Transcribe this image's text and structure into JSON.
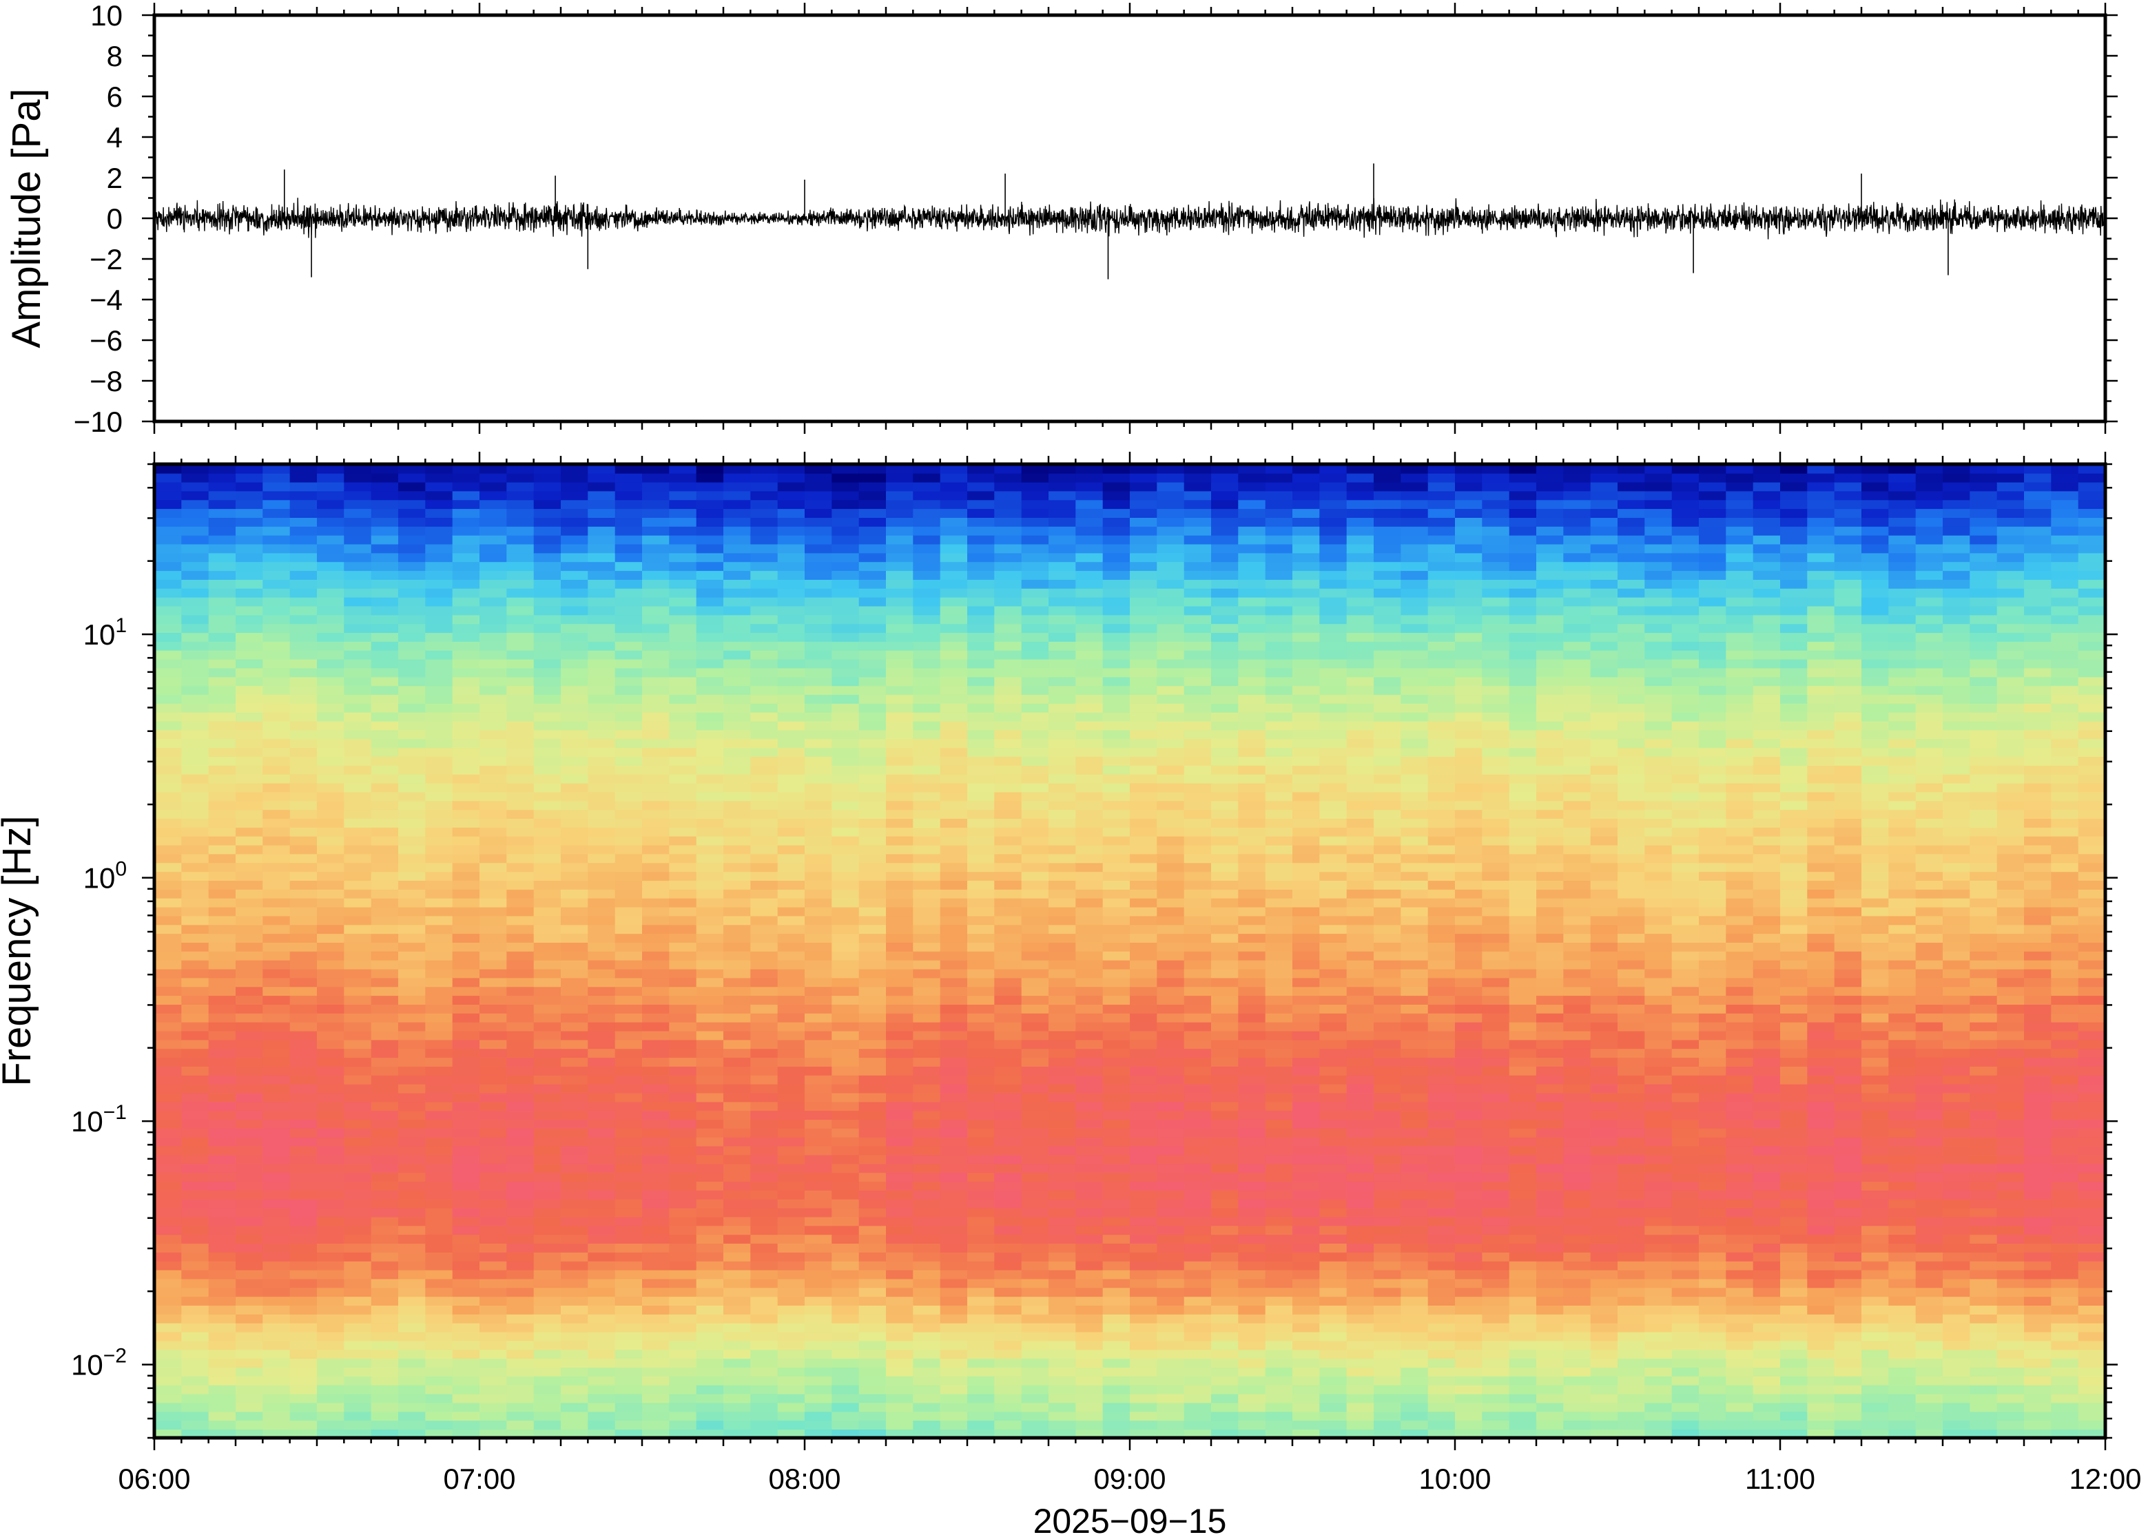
{
  "chart_data": [
    {
      "type": "line",
      "panel": "waveform",
      "ylabel": "Amplitude [Pa]",
      "ylim": [
        -10,
        10
      ],
      "yticks": [
        10,
        8,
        6,
        4,
        2,
        0,
        -2,
        -4,
        -6,
        -8,
        -10
      ],
      "ytick_labels": [
        "10",
        "8",
        "6",
        "4",
        "2",
        "0",
        "−2",
        "−4",
        "−6",
        "−8",
        "−10"
      ],
      "xlim": [
        "06:00",
        "12:00"
      ],
      "grid": false,
      "line_color": "#000000",
      "envelope": {
        "x": [
          "06:00",
          "06:15",
          "06:30",
          "06:45",
          "07:00",
          "07:15",
          "07:30",
          "07:45",
          "08:00",
          "08:15",
          "08:30",
          "08:45",
          "09:00",
          "09:15",
          "09:30",
          "09:45",
          "10:00",
          "10:15",
          "10:30",
          "10:45",
          "11:00",
          "11:15",
          "11:30",
          "11:45",
          "12:00"
        ],
        "typical_amplitude": [
          0.9,
          1.0,
          1.0,
          0.8,
          1.0,
          1.1,
          0.7,
          0.4,
          0.5,
          0.8,
          0.9,
          1.0,
          1.1,
          1.0,
          1.0,
          1.1,
          1.0,
          1.0,
          1.0,
          1.0,
          1.0,
          0.9,
          1.1,
          1.0,
          1.0
        ]
      },
      "peaks": [
        {
          "x": "06:24",
          "y": 2.4
        },
        {
          "x": "06:29",
          "y": -2.9
        },
        {
          "x": "07:14",
          "y": 2.1
        },
        {
          "x": "07:20",
          "y": -2.5
        },
        {
          "x": "08:00",
          "y": 1.9
        },
        {
          "x": "08:37",
          "y": 2.2
        },
        {
          "x": "08:56",
          "y": -3.0
        },
        {
          "x": "09:45",
          "y": 2.7
        },
        {
          "x": "10:44",
          "y": -2.7
        },
        {
          "x": "11:15",
          "y": 2.2
        },
        {
          "x": "11:31",
          "y": -2.8
        }
      ]
    },
    {
      "type": "heatmap",
      "panel": "spectrogram",
      "ylabel": "Frequency [Hz]",
      "yscale": "log",
      "ylim": [
        0.005,
        50
      ],
      "yticks": [
        {
          "value": 10,
          "base": "10",
          "exp": "1"
        },
        {
          "value": 1,
          "base": "10",
          "exp": "0"
        },
        {
          "value": 0.1,
          "base": "10",
          "exp": "−1"
        },
        {
          "value": 0.01,
          "base": "10",
          "exp": "−2"
        }
      ],
      "xlim": [
        "06:00",
        "12:00"
      ],
      "xticks": [
        "06:00",
        "07:00",
        "08:00",
        "09:00",
        "10:00",
        "11:00",
        "12:00"
      ],
      "xlabel": "2025−09−15",
      "colormap": [
        "#00007a",
        "#0a20c8",
        "#1e78f0",
        "#40c8f0",
        "#78e6c8",
        "#b4f0a0",
        "#e6ec8c",
        "#f8d278",
        "#f7a55a",
        "#f26a4e",
        "#f46070"
      ],
      "level_profile": {
        "log10_freq": [
          -2.3,
          -2.15,
          -2.0,
          -1.85,
          -1.7,
          -1.55,
          -1.4,
          -1.2,
          -1.0,
          -0.8,
          -0.6,
          -0.4,
          -0.2,
          0.0,
          0.2,
          0.4,
          0.6,
          0.8,
          1.0,
          1.15,
          1.3,
          1.45,
          1.6,
          1.7
        ],
        "relative_level": [
          0.44,
          0.5,
          0.56,
          0.68,
          0.8,
          0.88,
          0.93,
          0.95,
          0.94,
          0.91,
          0.86,
          0.81,
          0.76,
          0.72,
          0.68,
          0.64,
          0.58,
          0.5,
          0.42,
          0.34,
          0.26,
          0.18,
          0.1,
          0.05
        ]
      }
    }
  ]
}
